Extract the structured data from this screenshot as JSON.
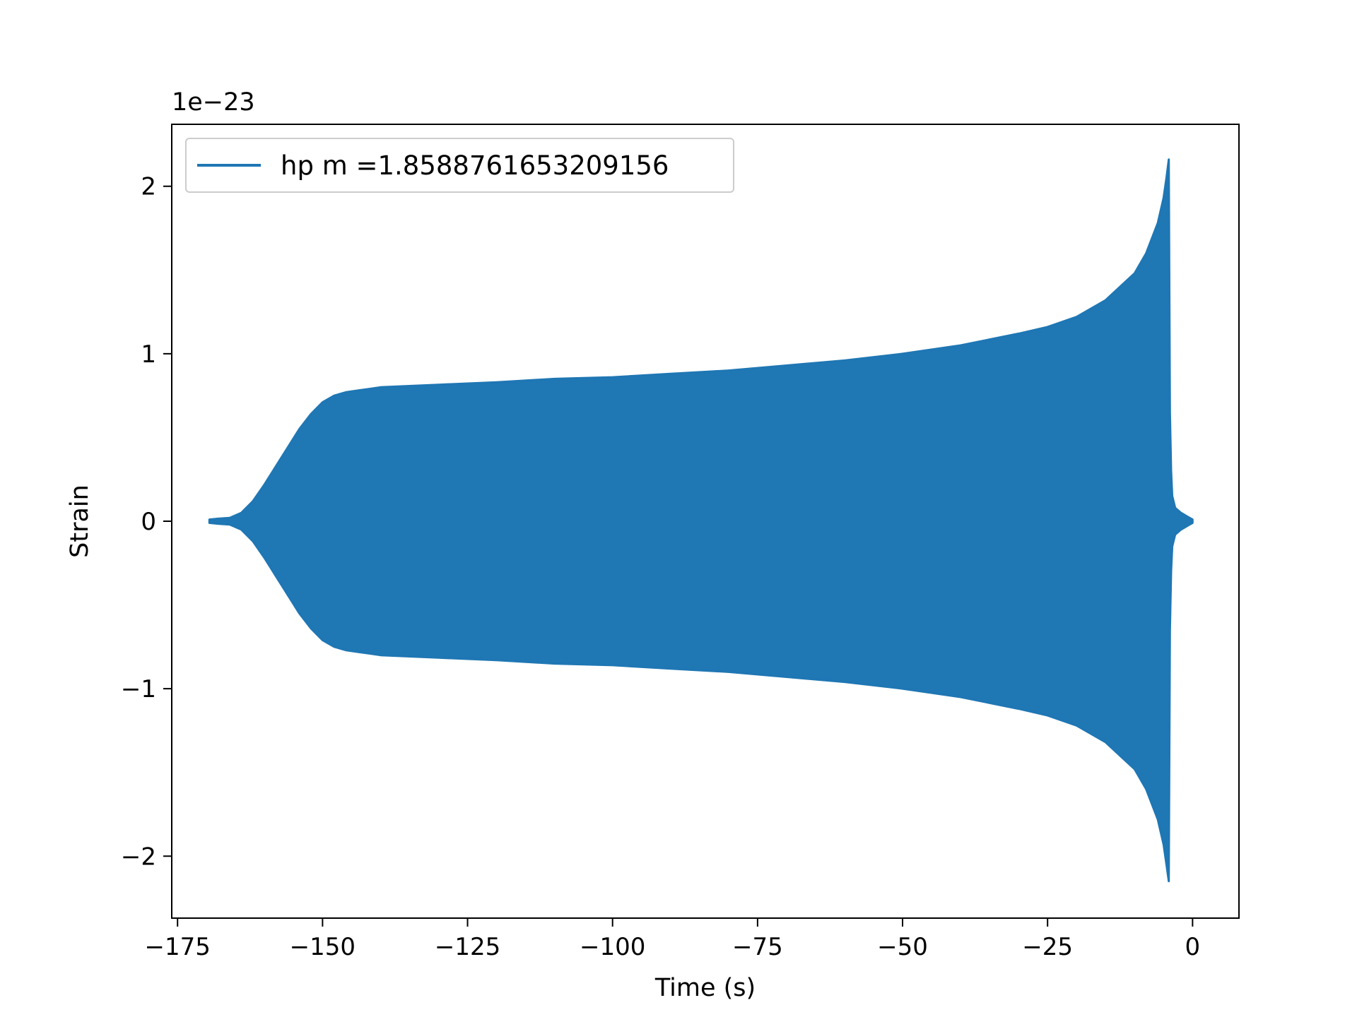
{
  "chart_data": {
    "type": "line",
    "title": "",
    "xlabel": "Time (s)",
    "ylabel": "Strain",
    "y_offset_label": "1e−23",
    "xlim": [
      -176,
      8
    ],
    "ylim": [
      -2.37,
      2.37
    ],
    "xticks": [
      -175,
      -150,
      -125,
      -100,
      -75,
      -50,
      -25,
      0
    ],
    "xtick_labels": [
      "−175",
      "−150",
      "−125",
      "−100",
      "−75",
      "−50",
      "−25",
      "0"
    ],
    "yticks": [
      -2,
      -1,
      0,
      1,
      2
    ],
    "ytick_labels": [
      "−2",
      "−1",
      "0",
      "1",
      "2"
    ],
    "grid": false,
    "legend": {
      "position": "top-left",
      "entries": [
        "hp m =1.8588761653209156"
      ]
    },
    "series": [
      {
        "name": "hp m =1.8588761653209156",
        "color": "#1f77b4",
        "envelope": {
          "x": [
            -169.5,
            -168,
            -166,
            -164,
            -162,
            -160,
            -158,
            -156,
            -154,
            -152,
            -150,
            -148,
            -146,
            -144,
            -142,
            -140,
            -130,
            -120,
            -110,
            -100,
            -90,
            -80,
            -70,
            -60,
            -50,
            -40,
            -30,
            -25,
            -20,
            -15,
            -10,
            -8,
            -6,
            -5,
            -4.5,
            -4.1,
            -3.9,
            -3.7,
            -3.5,
            -3.0,
            -2.0,
            -1.0,
            -0.5,
            0.0
          ],
          "upper": [
            0.01,
            0.015,
            0.02,
            0.05,
            0.12,
            0.22,
            0.33,
            0.44,
            0.55,
            0.64,
            0.71,
            0.75,
            0.77,
            0.78,
            0.79,
            0.8,
            0.815,
            0.83,
            0.85,
            0.86,
            0.88,
            0.9,
            0.93,
            0.96,
            1.0,
            1.05,
            1.12,
            1.16,
            1.22,
            1.32,
            1.48,
            1.6,
            1.78,
            1.93,
            2.05,
            2.16,
            0.65,
            0.3,
            0.15,
            0.08,
            0.05,
            0.03,
            0.02,
            0.01
          ],
          "lower": [
            -0.01,
            -0.015,
            -0.02,
            -0.05,
            -0.12,
            -0.22,
            -0.33,
            -0.44,
            -0.55,
            -0.64,
            -0.71,
            -0.75,
            -0.77,
            -0.78,
            -0.79,
            -0.8,
            -0.815,
            -0.83,
            -0.85,
            -0.86,
            -0.88,
            -0.9,
            -0.93,
            -0.96,
            -1.0,
            -1.05,
            -1.12,
            -1.16,
            -1.22,
            -1.32,
            -1.48,
            -1.6,
            -1.78,
            -1.93,
            -2.05,
            -2.15,
            -0.65,
            -0.3,
            -0.15,
            -0.08,
            -0.05,
            -0.03,
            -0.02,
            -0.01
          ]
        }
      }
    ]
  }
}
